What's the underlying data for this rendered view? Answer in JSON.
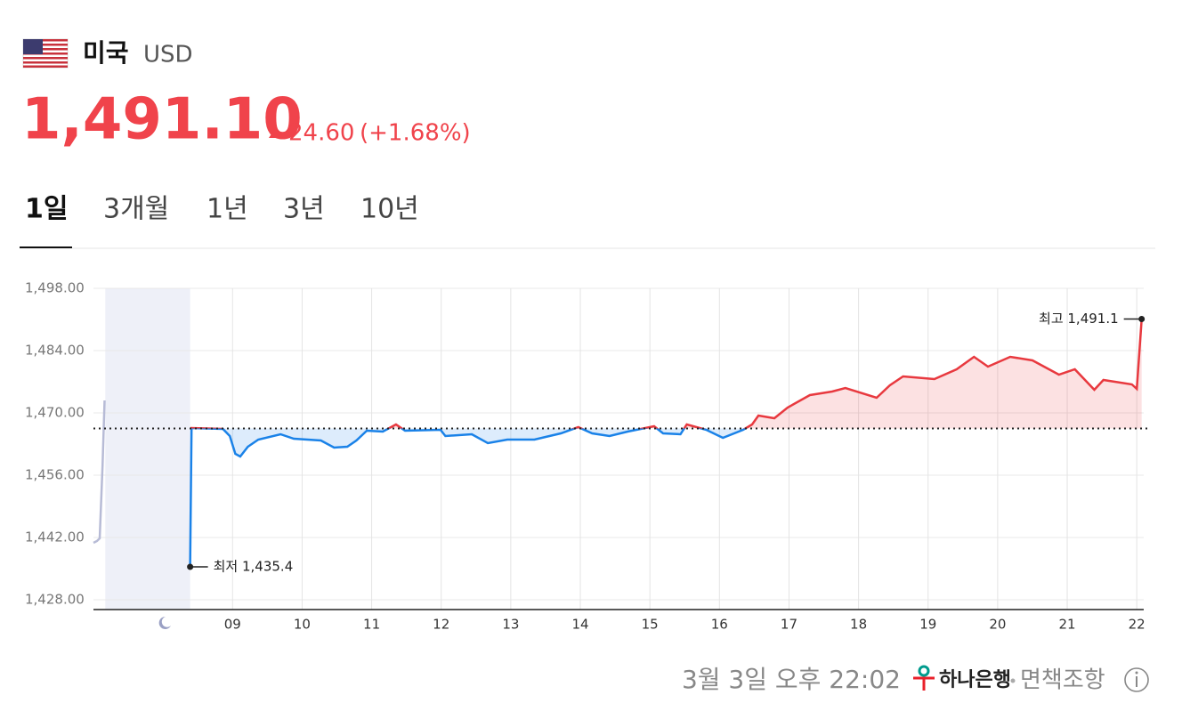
{
  "header": {
    "country": "미국",
    "currency": "USD",
    "price": "1,491.10",
    "change": "24.60",
    "change_pct": "(+1.68%)"
  },
  "tabs": [
    "1일",
    "3개월",
    "1년",
    "3년",
    "10년"
  ],
  "chart_data": {
    "type": "line",
    "xlim": [
      7.0,
      22.1
    ],
    "ylim": [
      1425.8,
      1498
    ],
    "xticks": [
      {
        "value": 9,
        "label": "09"
      },
      {
        "value": 10,
        "label": "10"
      },
      {
        "value": 11,
        "label": "11"
      },
      {
        "value": 12,
        "label": "12"
      },
      {
        "value": 13,
        "label": "13"
      },
      {
        "value": 14,
        "label": "14"
      },
      {
        "value": 15,
        "label": "15"
      },
      {
        "value": 16,
        "label": "16"
      },
      {
        "value": 17,
        "label": "17"
      },
      {
        "value": 18,
        "label": "18"
      },
      {
        "value": 19,
        "label": "19"
      },
      {
        "value": 20,
        "label": "20"
      },
      {
        "value": 21,
        "label": "21"
      },
      {
        "value": 22,
        "label": "22"
      }
    ],
    "yticks": [
      {
        "value": 1428,
        "label": "1,428.00"
      },
      {
        "value": 1442,
        "label": "1,442.00"
      },
      {
        "value": 1456,
        "label": "1,456.00"
      },
      {
        "value": 1470,
        "label": "1,470.00"
      },
      {
        "value": 1484,
        "label": "1,484.00"
      },
      {
        "value": 1498,
        "label": "1,498.00"
      }
    ],
    "grid": true,
    "reference": 1466.5,
    "night_shade": [
      7.17,
      8.39
    ],
    "series": [
      {
        "color": "#b7bbd6",
        "x": [
          7.0,
          7.05,
          7.09,
          7.13,
          7.16
        ],
        "values": [
          1440.8,
          1441.2,
          1441.8,
          1458,
          1472.8
        ]
      },
      {
        "color_above": "#e8393f",
        "color_below": "#1a82e8",
        "x": [
          8.39,
          8.41,
          8.86,
          8.96,
          9.04,
          9.11,
          9.22,
          9.37,
          9.69,
          9.88,
          10.27,
          10.46,
          10.65,
          10.78,
          10.93,
          11.16,
          11.35,
          11.48,
          11.99,
          12.06,
          12.44,
          12.67,
          12.95,
          13.34,
          13.72,
          13.97,
          14.17,
          14.42,
          14.68,
          15.06,
          15.19,
          15.44,
          15.53,
          15.81,
          16.05,
          16.34,
          16.47,
          16.56,
          16.79,
          16.98,
          17.3,
          17.62,
          17.81,
          18.26,
          18.45,
          18.64,
          19.09,
          19.41,
          19.66,
          19.86,
          20.18,
          20.5,
          20.88,
          21.11,
          21.39,
          21.52,
          21.93,
          22.0,
          22.07
        ],
        "values": [
          1435.4,
          1466.6,
          1466.4,
          1464.8,
          1460.8,
          1460.2,
          1462.4,
          1464,
          1465.2,
          1464.2,
          1463.8,
          1462.2,
          1462.4,
          1463.8,
          1466,
          1465.8,
          1467.4,
          1466,
          1466.2,
          1464.8,
          1465.2,
          1463.2,
          1464,
          1464,
          1465.4,
          1466.8,
          1465.4,
          1464.8,
          1465.8,
          1467,
          1465.4,
          1465.2,
          1467.4,
          1466.2,
          1464.4,
          1466.2,
          1467.4,
          1469.4,
          1468.8,
          1471.2,
          1474,
          1474.8,
          1475.6,
          1473.4,
          1476.2,
          1478.2,
          1477.6,
          1479.8,
          1482.6,
          1480.4,
          1482.6,
          1481.8,
          1478.6,
          1479.8,
          1475.2,
          1477.4,
          1476.4,
          1475.4,
          1491.1
        ]
      }
    ],
    "annotations": [
      {
        "text": "최저 1,435.4",
        "x": 8.39,
        "y": 1435.4,
        "side": "right"
      },
      {
        "text": "최고 1,491.1",
        "x": 22.07,
        "y": 1491.1,
        "side": "left"
      }
    ]
  },
  "footer": {
    "timestamp": "3월 3일 오후 22:02",
    "bank": "하나은행",
    "disclaimer": "면책조항"
  }
}
